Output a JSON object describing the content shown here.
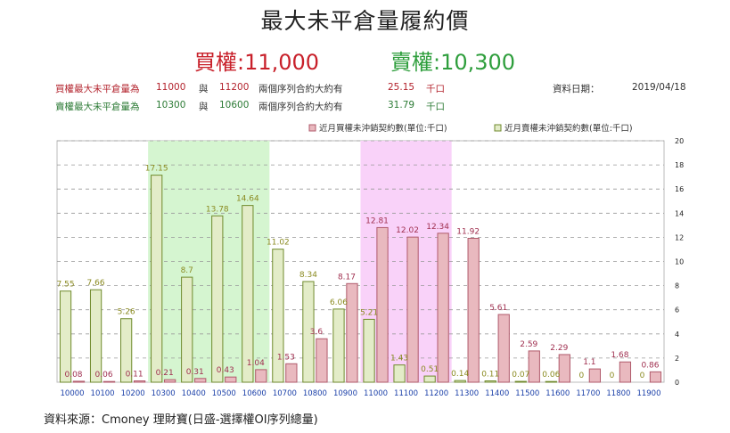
{
  "title": "最大未平倉量履約價",
  "subtitle_call": "買權:11,000",
  "subtitle_put": "賣權:10,300",
  "info_call": {
    "prefix": "買權最大未平倉量為",
    "strike1": "11000",
    "conj": "與",
    "strike2": "11200",
    "mid": "兩個序列合約大約有",
    "value": "25.15",
    "unit": "千口"
  },
  "info_put": {
    "prefix": "賣權最大未平倉量為",
    "strike1": "10300",
    "conj": "與",
    "strike2": "10600",
    "mid": "兩個序列合約大約有",
    "value": "31.79",
    "unit": "千口"
  },
  "date_label": "資料日期：",
  "date_value": "2019/04/18",
  "source": "資料來源：Cmoney 理財寶(日盛-選擇權OI序列總量)",
  "colors": {
    "call_fill": "#e9b9bf",
    "call_stroke": "#b05a6b",
    "put_fill": "#e3ecc8",
    "put_stroke": "#6f8a2c",
    "call_label": "#a03050",
    "put_label": "#8a8a20",
    "green_band": "#d5f5d0",
    "pink_band": "#f9d2f9"
  },
  "chart_data": {
    "type": "bar",
    "categories": [
      "10000",
      "10100",
      "10200",
      "10300",
      "10400",
      "10500",
      "10600",
      "10700",
      "10800",
      "10900",
      "11000",
      "11100",
      "11200",
      "11300",
      "11400",
      "11500",
      "11600",
      "11700",
      "11800",
      "11900"
    ],
    "series": [
      {
        "name": "近月買權未沖銷契約數(單位:千口)",
        "values": [
          0.08,
          0.06,
          0.11,
          0.21,
          0.31,
          0.43,
          1.04,
          1.53,
          3.6,
          8.17,
          12.81,
          12.02,
          12.34,
          11.92,
          5.61,
          2.59,
          2.29,
          1.1,
          1.68,
          0.86
        ]
      },
      {
        "name": "近月賣權未沖銷契約數(單位:千口)",
        "values": [
          7.55,
          7.66,
          5.26,
          17.15,
          8.7,
          13.78,
          14.64,
          11.02,
          8.34,
          6.06,
          5.21,
          1.43,
          0.51,
          0.14,
          0.11,
          0.07,
          0.06,
          0,
          0,
          0
        ]
      }
    ],
    "value_labels": {
      "call": [
        "0.08",
        "0.06",
        "0.11",
        "0.21",
        "0.31",
        "0.43",
        "1.04",
        "1.53",
        "3.6",
        "8.17",
        "12.81",
        "12.02",
        "12.34",
        "11.92",
        "5.61",
        "2.59",
        "2.29",
        "1.1",
        "1.68",
        "0.86"
      ],
      "put": [
        "7.55",
        "7.66",
        "5.26",
        "17.15",
        "8.7",
        "13.78",
        "14.64",
        "11.02",
        "8.34",
        "6.06",
        "5.21",
        "1.43",
        "0.51",
        "0.14",
        "0.11",
        "0.07",
        "0.06",
        "0",
        "0",
        "0"
      ]
    },
    "highlight_put_range": [
      "10300",
      "10600"
    ],
    "highlight_call_range": [
      "11000",
      "11200"
    ],
    "ylim": [
      0,
      20
    ],
    "yticks": [
      0,
      2,
      4,
      6,
      8,
      10,
      12,
      14,
      16,
      18,
      20
    ],
    "grid": true,
    "legend_position": "top-right"
  }
}
